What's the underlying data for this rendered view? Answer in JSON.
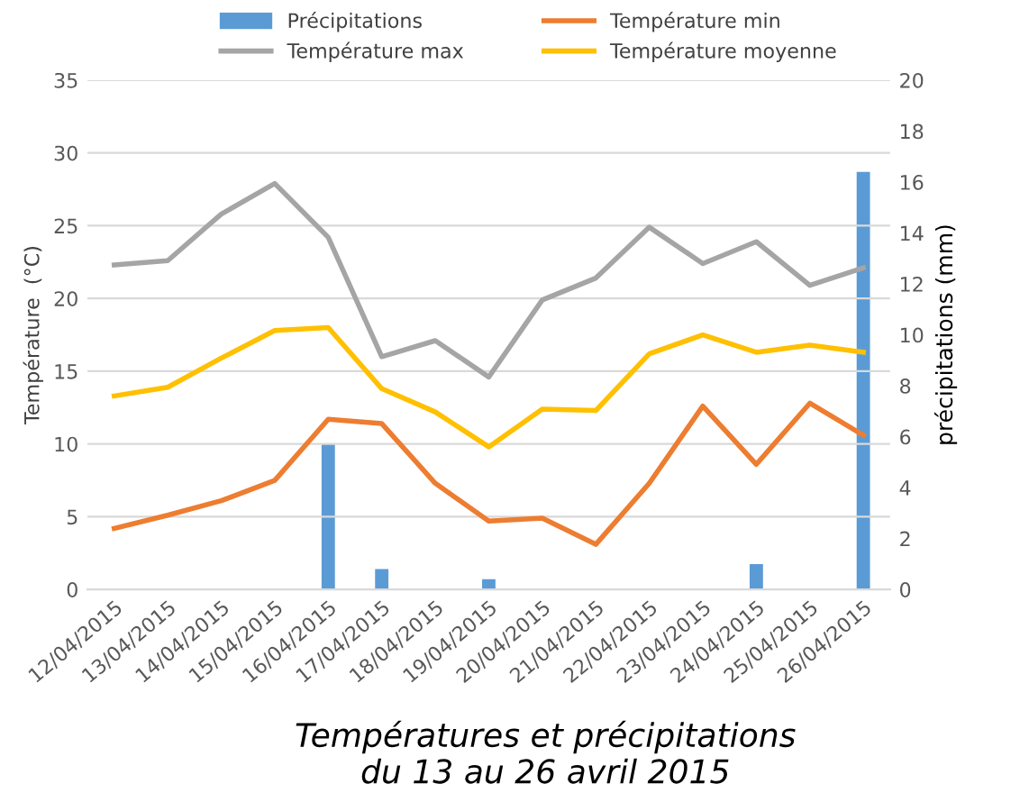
{
  "chart_data": {
    "type": "line",
    "title": "Températures et précipitations\ndu 13 au 26 avril 2015",
    "categories": [
      "12/04/2015",
      "13/04/2015",
      "14/04/2015",
      "15/04/2015",
      "16/04/2015",
      "17/04/2015",
      "18/04/2015",
      "19/04/2015",
      "20/04/2015",
      "21/04/2015",
      "22/04/2015",
      "23/04/2015",
      "24/04/2015",
      "25/04/2015",
      "26/04/2015"
    ],
    "series": [
      {
        "name": "Précipitations",
        "type": "bar",
        "axis": "y2",
        "color": "#5b9bd5",
        "values": [
          0,
          0,
          0,
          0,
          5.7,
          0.8,
          0,
          0.4,
          0,
          0,
          0,
          0,
          1.0,
          0,
          16.4
        ]
      },
      {
        "name": "Température min",
        "color": "#ed7d31",
        "values": [
          4.2,
          5.1,
          6.1,
          7.5,
          11.7,
          11.4,
          7.3,
          4.7,
          4.9,
          3.1,
          7.3,
          12.6,
          8.6,
          12.8,
          10.6
        ]
      },
      {
        "name": "Température max",
        "color": "#a5a5a5",
        "values": [
          22.3,
          22.6,
          25.8,
          27.9,
          24.2,
          16.0,
          17.1,
          14.6,
          19.9,
          21.4,
          24.9,
          22.4,
          23.9,
          20.9,
          22.1
        ]
      },
      {
        "name": "Température moyenne",
        "color": "#ffc000",
        "values": [
          13.3,
          13.9,
          15.9,
          17.8,
          18.0,
          13.8,
          12.2,
          9.8,
          12.4,
          12.3,
          16.2,
          17.5,
          16.3,
          16.8,
          16.3
        ]
      }
    ],
    "ylabel": "Température  (°C)",
    "y2label": "précipitations (mm)",
    "ylim": [
      0,
      35
    ],
    "yticks": [
      0,
      5,
      10,
      15,
      20,
      25,
      30,
      35
    ],
    "y2lim": [
      0,
      20
    ],
    "y2ticks": [
      0,
      2,
      4,
      6,
      8,
      10,
      12,
      14,
      16,
      18,
      20
    ],
    "grid": "y",
    "legend": "top",
    "marker": "none"
  }
}
